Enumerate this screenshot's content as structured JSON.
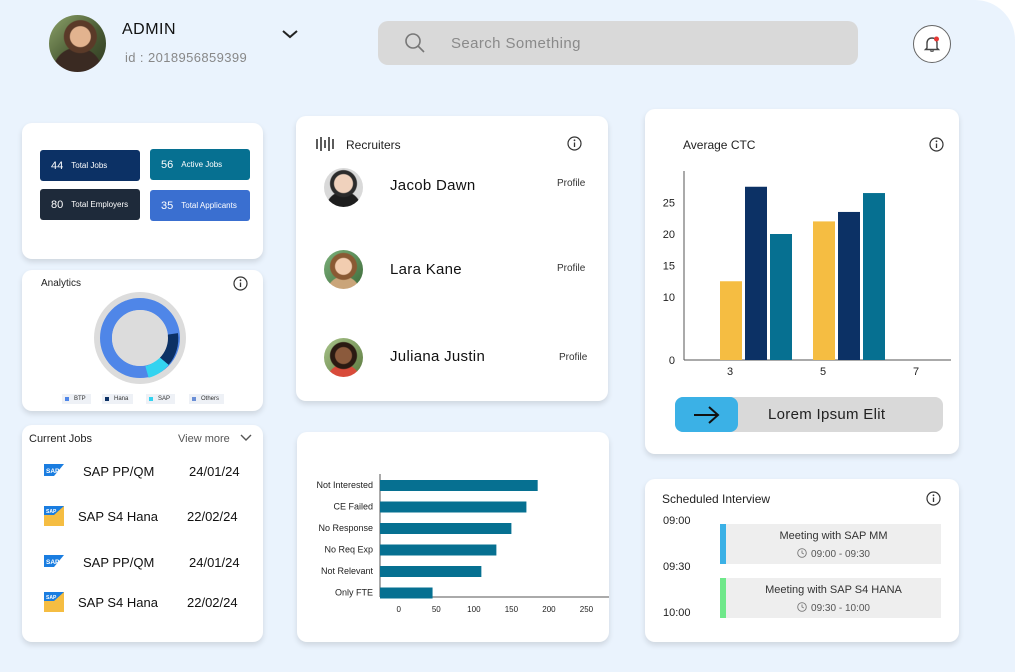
{
  "header": {
    "user_name": "ADMIN",
    "user_id": "id :  2018956859399",
    "search_placeholder": "Search Something"
  },
  "stats": [
    {
      "value": "44",
      "label": "Total Jobs",
      "color": "#0c3165"
    },
    {
      "value": "56",
      "label": "Active Jobs",
      "color": "#067091"
    },
    {
      "value": "80",
      "label": "Total Employers",
      "color": "#1e2a3a"
    },
    {
      "value": "35",
      "label": "Total Applicants",
      "color": "#3a6fd0"
    }
  ],
  "analytics": {
    "title": "Analytics",
    "legend": [
      {
        "label": "BTP",
        "color": "#4f86e8"
      },
      {
        "label": "Hana",
        "color": "#0c3165"
      },
      {
        "label": "SAP",
        "color": "#33d3f0"
      },
      {
        "label": "Others",
        "color": "#6b8fd6"
      }
    ]
  },
  "current_jobs": {
    "title": "Current Jobs",
    "view_more": "View more",
    "items": [
      {
        "name": "SAP PP/QM",
        "date": "24/01/24",
        "logo": "sap-logo"
      },
      {
        "name": "SAP S4 Hana",
        "date": "22/02/24",
        "logo": "sap-s4-logo"
      },
      {
        "name": "SAP PP/QM",
        "date": "24/01/24",
        "logo": "sap-logo"
      },
      {
        "name": "SAP S4 Hana",
        "date": "22/02/24",
        "logo": "sap-s4-logo"
      }
    ]
  },
  "recruiters": {
    "title": "Recruiters",
    "items": [
      {
        "name": "Jacob Dawn",
        "link": "Profile"
      },
      {
        "name": "Lara Kane",
        "link": "Profile"
      },
      {
        "name": "Juliana Justin",
        "link": "Profile"
      }
    ]
  },
  "avg_ctc": {
    "title": "Average CTC",
    "cta_label": "Lorem Ipsum Elit"
  },
  "interviews": {
    "title": "Scheduled Interview",
    "times": [
      "09:00",
      "09:30",
      "10:00"
    ],
    "meetings": [
      {
        "title": "Meeting with SAP MM",
        "time": "09:00 - 09:30",
        "color": "#3bb1e6"
      },
      {
        "title": "Meeting with SAP S4 HANA",
        "time": "09:30 - 10:00",
        "color": "#6fe88a"
      }
    ]
  },
  "chart_data": [
    {
      "type": "bar",
      "title": "Average CTC",
      "x": [
        3,
        5,
        7
      ],
      "ylim": [
        0,
        30
      ],
      "yticks": [
        0,
        10,
        15,
        20,
        25
      ],
      "groups": [
        {
          "x": 3,
          "values": [
            {
              "value": 12.5,
              "color": "#f5bd42"
            },
            {
              "value": 27.5,
              "color": "#0c3165"
            },
            {
              "value": 20,
              "color": "#067091"
            }
          ]
        },
        {
          "x": 5,
          "values": [
            {
              "value": 22,
              "color": "#f5bd42"
            },
            {
              "value": 23.5,
              "color": "#0c3165"
            },
            {
              "value": 26.5,
              "color": "#067091"
            }
          ]
        }
      ],
      "grid": false
    },
    {
      "type": "bar",
      "orientation": "horizontal",
      "categories": [
        "Not Interested",
        "CE Failed",
        "No Response",
        "No Req Exp",
        "Not Relevant",
        "Only FTE"
      ],
      "values": [
        185,
        170,
        150,
        130,
        110,
        45
      ],
      "xticks": [
        0,
        50,
        100,
        150,
        200,
        250
      ],
      "xlim": [
        -25,
        280
      ],
      "color": "#067091"
    }
  ]
}
